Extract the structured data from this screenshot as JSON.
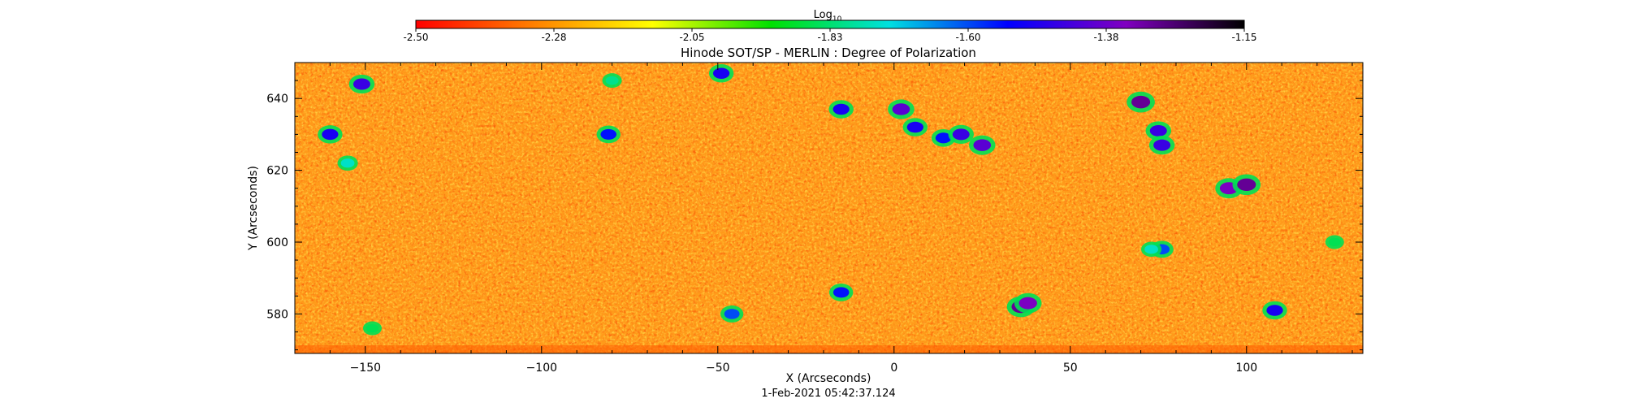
{
  "chart_data": {
    "type": "heatmap",
    "title": "Hinode SOT/SP - MERLIN : Degree of Polarization",
    "xlabel": "X (Arcseconds)",
    "ylabel": "Y (Arcseconds)",
    "timestamp": "1-Feb-2021 05:42:37.124",
    "xlim": [
      -170,
      133
    ],
    "ylim": [
      569,
      650
    ],
    "x_ticks": [
      -150,
      -100,
      -50,
      0,
      50,
      100
    ],
    "y_ticks": [
      580,
      600,
      620,
      640
    ],
    "grid": false,
    "colorbar": {
      "label_base": "Log",
      "label_sub": "10",
      "range": [
        -2.5,
        -1.15
      ],
      "ticks": [
        "-2.50",
        "-2.28",
        "-2.05",
        "-1.83",
        "-1.60",
        "-1.38",
        "-1.15"
      ],
      "colors": [
        "#ff0000",
        "#ff8000",
        "#ffff00",
        "#00e000",
        "#00e0e0",
        "#0000ff",
        "#8000c0",
        "#000000"
      ]
    },
    "background_value": -2.3,
    "features": [
      {
        "x": -151,
        "y": 644,
        "value": -1.45
      },
      {
        "x": -160,
        "y": 630,
        "value": -1.5
      },
      {
        "x": -155,
        "y": 622,
        "value": -1.75
      },
      {
        "x": -148,
        "y": 576,
        "value": -1.85
      },
      {
        "x": -80,
        "y": 645,
        "value": -1.8
      },
      {
        "x": -81,
        "y": 630,
        "value": -1.55
      },
      {
        "x": -49,
        "y": 647,
        "value": -1.5
      },
      {
        "x": -46,
        "y": 580,
        "value": -1.6
      },
      {
        "x": -15,
        "y": 586,
        "value": -1.55
      },
      {
        "x": -15,
        "y": 637,
        "value": -1.5
      },
      {
        "x": 2,
        "y": 637,
        "value": -1.4
      },
      {
        "x": 6,
        "y": 632,
        "value": -1.5
      },
      {
        "x": 14,
        "y": 629,
        "value": -1.55
      },
      {
        "x": 19,
        "y": 630,
        "value": -1.45
      },
      {
        "x": 25,
        "y": 627,
        "value": -1.4
      },
      {
        "x": 36,
        "y": 582,
        "value": -1.3
      },
      {
        "x": 38,
        "y": 583,
        "value": -1.35
      },
      {
        "x": 70,
        "y": 639,
        "value": -1.3
      },
      {
        "x": 75,
        "y": 631,
        "value": -1.45
      },
      {
        "x": 76,
        "y": 627,
        "value": -1.45
      },
      {
        "x": 76,
        "y": 598,
        "value": -1.6
      },
      {
        "x": 73,
        "y": 598,
        "value": -1.75
      },
      {
        "x": 95,
        "y": 615,
        "value": -1.35
      },
      {
        "x": 100,
        "y": 616,
        "value": -1.3
      },
      {
        "x": 108,
        "y": 581,
        "value": -1.5
      },
      {
        "x": 125,
        "y": 600,
        "value": -1.85
      }
    ]
  }
}
